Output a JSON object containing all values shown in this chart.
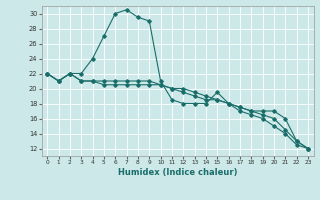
{
  "xlabel": "Humidex (Indice chaleur)",
  "xlim": [
    -0.5,
    23.5
  ],
  "ylim": [
    11,
    31
  ],
  "yticks": [
    12,
    14,
    16,
    18,
    20,
    22,
    24,
    26,
    28,
    30
  ],
  "xticks": [
    0,
    1,
    2,
    3,
    4,
    5,
    6,
    7,
    8,
    9,
    10,
    11,
    12,
    13,
    14,
    15,
    16,
    17,
    18,
    19,
    20,
    21,
    22,
    23
  ],
  "bg_color": "#cce8e8",
  "line_color": "#1a6e6a",
  "grid_color": "#ffffff",
  "line1_y": [
    22,
    21,
    22,
    21,
    21,
    20.5,
    20.5,
    20.5,
    20.5,
    20.5,
    20.5,
    20,
    20,
    19.5,
    19,
    18.5,
    18,
    17.5,
    17,
    16.5,
    16,
    14.5,
    13,
    12
  ],
  "line2_y": [
    22,
    21,
    22,
    21,
    21,
    21,
    21,
    21,
    21,
    21,
    20.5,
    20,
    19.5,
    19,
    18.5,
    18.5,
    18,
    17,
    16.5,
    16,
    15,
    14,
    12.5,
    12
  ],
  "line3_y": [
    22,
    21,
    22,
    22,
    24,
    27,
    30,
    30.5,
    29.5,
    29,
    21,
    18.5,
    18,
    18,
    18,
    19.5,
    18,
    17.5,
    17,
    17,
    17,
    16,
    13,
    12
  ]
}
